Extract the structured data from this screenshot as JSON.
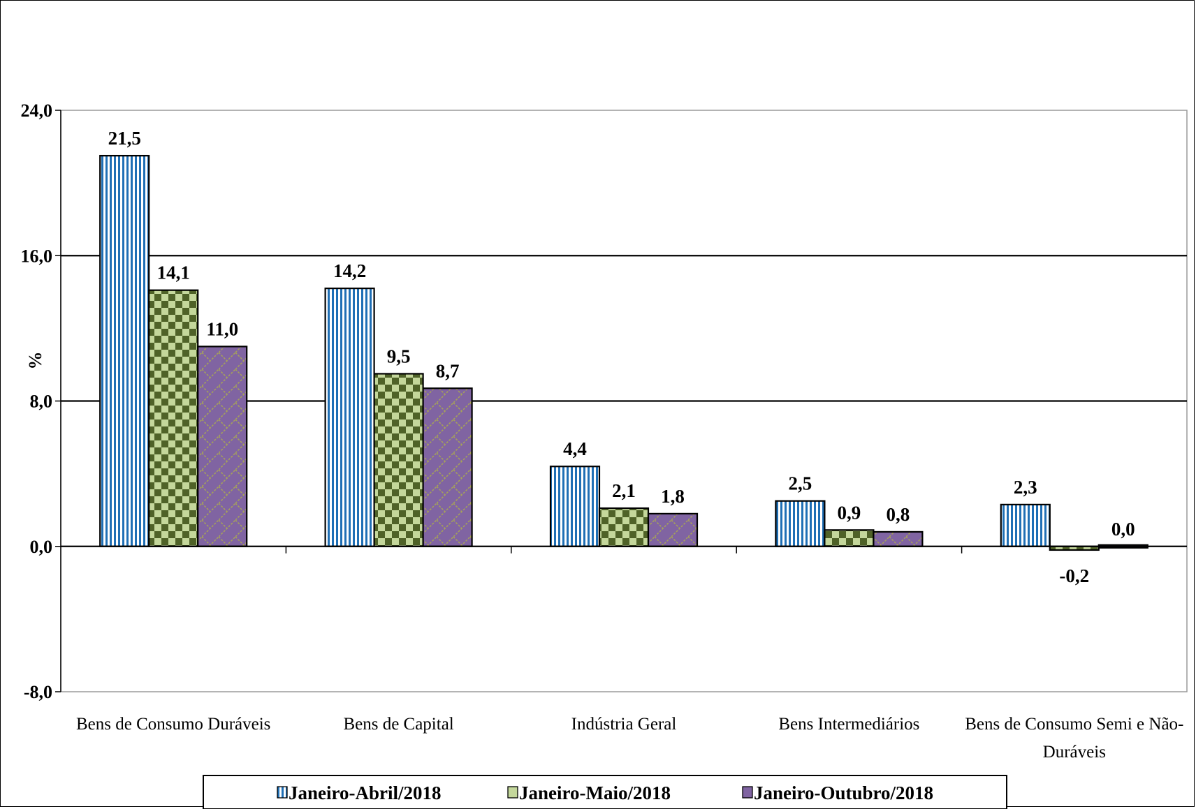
{
  "chart_data": {
    "type": "bar",
    "title": "",
    "ylabel": "%",
    "xlabel": "",
    "ylim": [
      -8,
      24
    ],
    "yticks": [
      "24,0",
      "16,0",
      "8,0",
      "0,0",
      "-8,0"
    ],
    "ytick_values": [
      24,
      16,
      8,
      0,
      -8
    ],
    "grid": true,
    "legend_position": "bottom",
    "categories": [
      [
        "Bens de Consumo Duráveis"
      ],
      [
        "Bens de Capital"
      ],
      [
        "Indústria Geral"
      ],
      [
        "Bens Intermediários"
      ],
      [
        "Bens de Consumo Semi e Não-",
        "Duráveis"
      ]
    ],
    "series": [
      {
        "name": "Janeiro-Abril/2018",
        "color": "#1f6fb5",
        "values": [
          21.5,
          14.2,
          4.4,
          2.5,
          2.3
        ],
        "labels": [
          "21,5",
          "14,2",
          "4,4",
          "2,5",
          "2,3"
        ]
      },
      {
        "name": "Janeiro-Maio/2018",
        "color": "#c4d79b",
        "values": [
          14.1,
          9.5,
          2.1,
          0.9,
          -0.2
        ],
        "labels": [
          "14,1",
          "9,5",
          "2,1",
          "0,9",
          "-0,2"
        ]
      },
      {
        "name": "Janeiro-Outubro/2018",
        "color": "#8064a2",
        "values": [
          11.0,
          8.7,
          1.8,
          0.8,
          0.0
        ],
        "labels": [
          "11,0",
          "8,7",
          "1,8",
          "0,8",
          "0,0"
        ]
      }
    ]
  }
}
